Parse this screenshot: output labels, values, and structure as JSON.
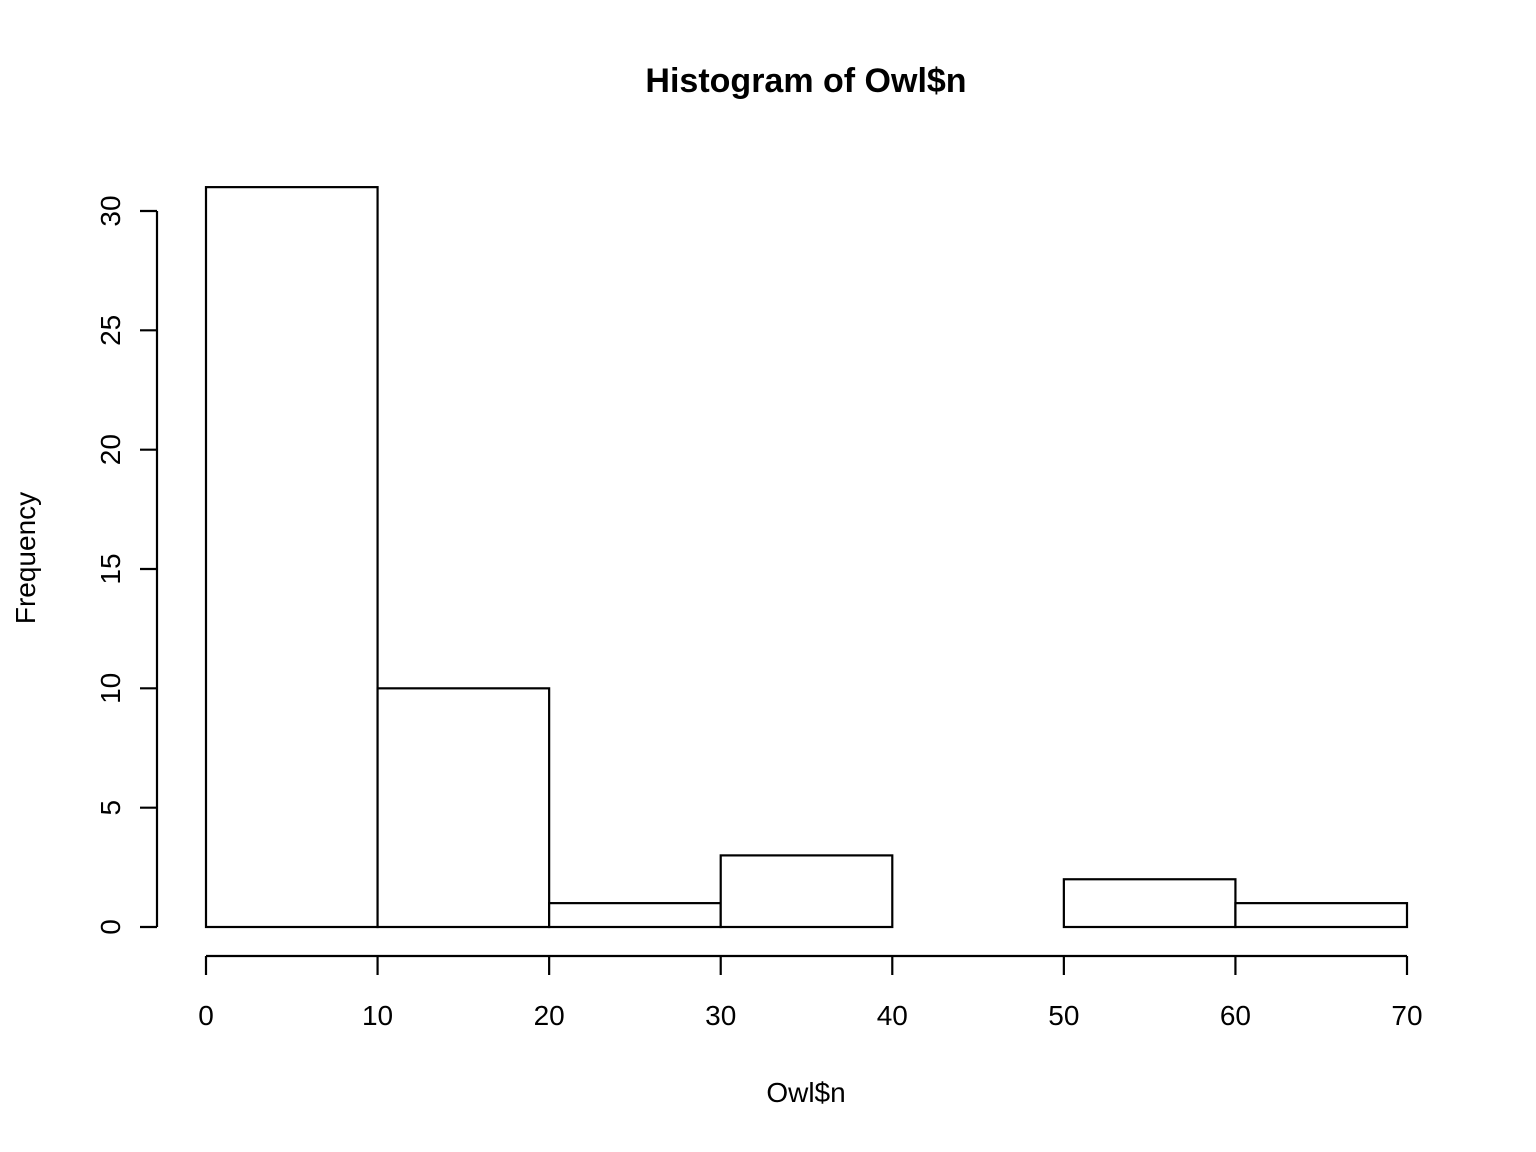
{
  "chart_data": {
    "type": "bar",
    "title": "Histogram of Owl$n",
    "xlabel": "Owl$n",
    "ylabel": "Frequency",
    "bin_edges": [
      0,
      10,
      20,
      30,
      40,
      50,
      60,
      70
    ],
    "values": [
      31,
      10,
      1,
      3,
      0,
      2,
      1
    ],
    "xlim": [
      0,
      70
    ],
    "ylim": [
      0,
      31
    ],
    "x_ticks": [
      0,
      10,
      20,
      30,
      40,
      50,
      60,
      70
    ],
    "x_tick_labels": [
      "0",
      "10",
      "20",
      "30",
      "40",
      "50",
      "60",
      "70"
    ],
    "y_ticks": [
      0,
      5,
      10,
      15,
      20,
      25,
      30
    ],
    "y_tick_labels": [
      "0",
      "5",
      "10",
      "15",
      "20",
      "25",
      "30"
    ],
    "grid": false,
    "bar_fill": "#ffffff",
    "bar_stroke": "#000000"
  }
}
